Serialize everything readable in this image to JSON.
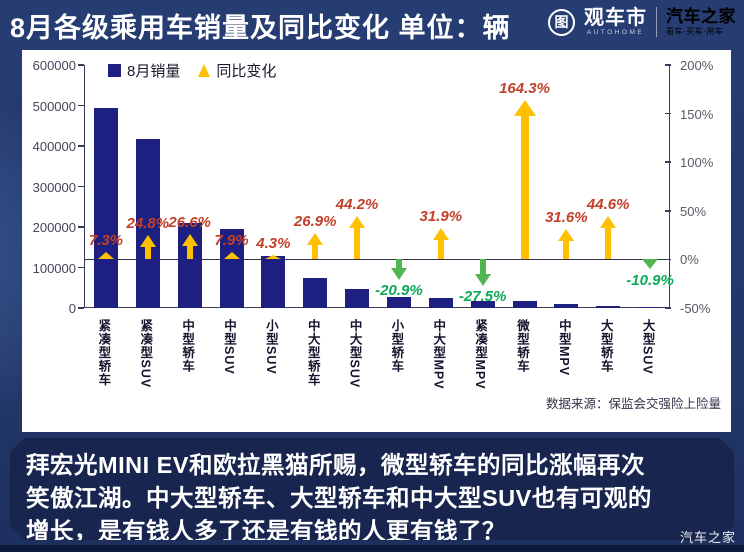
{
  "header": {
    "title": "8月各级乘用车销量及同比变化 单位：辆",
    "logo": {
      "icon_char": "图",
      "brand": "观车市",
      "brand_sub": "AUTOHOME",
      "partner": "汽车之家",
      "partner_sub": "看车·买车·用车"
    }
  },
  "chart_data": {
    "type": "bar",
    "title": "8月各级乘用车销量及同比变化",
    "unit": "辆",
    "legend": [
      {
        "label": "8月销量",
        "marker": "square",
        "color": "#1D2080"
      },
      {
        "label": "同比变化",
        "marker": "arrow-up",
        "color": "#FFC000"
      }
    ],
    "categories": [
      "紧凑型轿车",
      "紧凑型SUV",
      "中型轿车",
      "中型SUV",
      "小型SUV",
      "中大型轿车",
      "中大型SUV",
      "小型轿车",
      "中大型MPV",
      "紧凑型MPV",
      "微型轿车",
      "中型MPV",
      "大型轿车",
      "大型SUV"
    ],
    "series": [
      {
        "name": "8月销量",
        "axis": "left",
        "values": [
          495000,
          417000,
          209000,
          196000,
          128000,
          73000,
          47000,
          28000,
          25000,
          17000,
          18000,
          11000,
          6000,
          2000
        ]
      },
      {
        "name": "同比变化",
        "axis": "right",
        "values": [
          7.3,
          24.8,
          26.6,
          7.9,
          4.3,
          26.9,
          44.2,
          -20.9,
          31.9,
          -27.5,
          164.3,
          31.6,
          44.6,
          -10.9
        ],
        "labels": [
          "7.3%",
          "24.8%",
          "26.6%",
          "7.9%",
          "4.3%",
          "26.9%",
          "44.2%",
          "-20.9%",
          "31.9%",
          "-27.5%",
          "164.3%",
          "31.6%",
          "44.6%",
          "-10.9%"
        ]
      }
    ],
    "left_axis": {
      "min": 0,
      "max": 600000,
      "ticks": [
        "600000",
        "500000",
        "400000",
        "300000",
        "200000",
        "100000",
        "0"
      ]
    },
    "right_axis": {
      "min": -50,
      "max": 200,
      "ticks": [
        "200%",
        "150%",
        "100%",
        "50%",
        "0%",
        "-50%"
      ]
    },
    "grid": "zero-line-only",
    "legend_position": "top-left-inside",
    "source": "数据来源：保监会交强险上险量",
    "colors": {
      "bar": "#1D2080",
      "positive_arrow": "#FFC000",
      "negative_arrow": "#53B552",
      "positive_label": "#C2402A",
      "negative_label": "#0CA958"
    }
  },
  "footer": {
    "text": "拜宏光MINI EV和欧拉黑猫所赐，微型轿车的同比涨幅再次\n笑傲江湖。中大型轿车、大型轿车和中大型SUV也有可观的\n增长，是有钱人多了还是有钱的人更有钱了？",
    "watermark": "汽车之家"
  }
}
